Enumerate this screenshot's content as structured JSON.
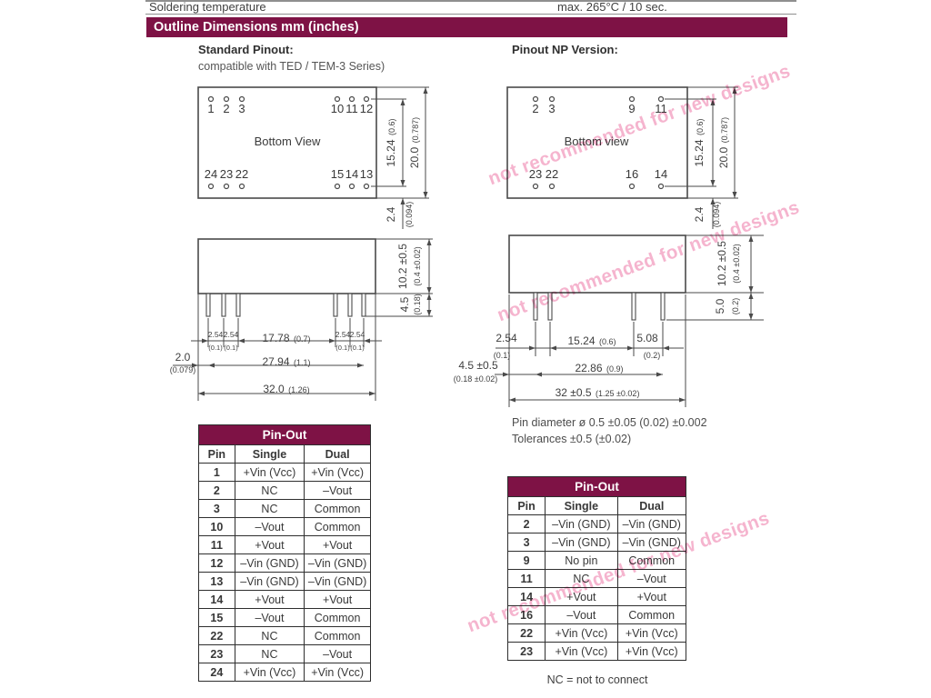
{
  "page": {
    "top_row": {
      "label": "Soldering temperature",
      "value": "max. 265°C / 10 sec."
    },
    "section_title": "Outline Dimensions mm (inches)",
    "watermark_text": "not recommended for new designs",
    "colors": {
      "accent_maroon": "#7E1245",
      "watermark_pink": "#F4A7C6",
      "line_gray": "#4A4A4A"
    }
  },
  "standard_top": {
    "title": "Standard Pinout:",
    "subtitle": "compatible with TED / TEM-3 Series)",
    "view_label": "Bottom View",
    "pins_top": [
      "1",
      "2",
      "3",
      "10",
      "11",
      "12"
    ],
    "pins_bottom": [
      "24",
      "23",
      "22",
      "15",
      "14",
      "13"
    ],
    "dim_pitch_mm": "15.24",
    "dim_pitch_in": "(0.6)",
    "dim_height_mm": "20.0",
    "dim_height_in": "(0.787)",
    "dim_offset_mm": "2.4",
    "dim_offset_in": "(0.094)"
  },
  "np_top": {
    "title": "Pinout NP Version:",
    "view_label": "Bottom view",
    "pins_top": [
      "2",
      "3",
      "9",
      "11"
    ],
    "pins_bottom": [
      "23",
      "22",
      "16",
      "14"
    ],
    "dim_pitch_mm": "15.24",
    "dim_pitch_in": "(0.6)",
    "dim_height_mm": "20.0",
    "dim_height_in": "(0.787)",
    "dim_offset_mm": "2.4",
    "dim_offset_in": "(0.094)"
  },
  "standard_side": {
    "body_h_mm": "10.2 ±0.5",
    "body_h_in": "(0.4 ±0.02)",
    "pin_len_mm": "4.5",
    "pin_len_in": "(0.18)",
    "seg1_mm": "2.54",
    "seg1_in": "(0.1)",
    "seg2_mm": "2.54",
    "seg2_in": "(0.1)",
    "mid_mm": "17.78",
    "mid_in": "(0.7)",
    "seg3_mm": "2.54",
    "seg3_in": "(0.1)",
    "seg4_mm": "2.54",
    "seg4_in": "(0.1)",
    "span_mm": "27.94",
    "span_in": "(1.1)",
    "total_mm": "32.0",
    "total_in": "(1.26)",
    "edge_mm": "2.0",
    "edge_in": "(0.079)"
  },
  "np_side": {
    "body_h_mm": "10.2 ±0.5",
    "body_h_in": "(0.4 ±0.02)",
    "pin_len_mm": "5.0",
    "pin_len_in": "(0.2)",
    "seg1_mm": "2.54",
    "seg1_in": "(0.1)",
    "mid_mm": "15.24",
    "mid_in": "(0.6)",
    "seg2_mm": "5.08",
    "seg2_in": "(0.2)",
    "span_mm": "22.86",
    "span_in": "(0.9)",
    "total_mm": "32 ±0.5",
    "total_in": "(1.25 ±0.02)",
    "edge_mm": "4.5 ±0.5",
    "edge_in": "(0.18 ±0.02)"
  },
  "notes": {
    "pin_diameter": "Pin diameter ø 0.5 ±0.05  (0.02) ±0.002",
    "tolerances": "Tolerances  ±0.5 (±0.02)"
  },
  "pinout_standard": {
    "title": "Pin-Out",
    "columns": [
      "Pin",
      "Single",
      "Dual"
    ],
    "rows": [
      [
        "1",
        "+Vin (Vcc)",
        "+Vin (Vcc)"
      ],
      [
        "2",
        "NC",
        "–Vout"
      ],
      [
        "3",
        "NC",
        "Common"
      ],
      [
        "10",
        "–Vout",
        "Common"
      ],
      [
        "11",
        "+Vout",
        "+Vout"
      ],
      [
        "12",
        "–Vin (GND)",
        "–Vin (GND)"
      ],
      [
        "13",
        "–Vin (GND)",
        "–Vin (GND)"
      ],
      [
        "14",
        "+Vout",
        "+Vout"
      ],
      [
        "15",
        "–Vout",
        "Common"
      ],
      [
        "22",
        "NC",
        "Common"
      ],
      [
        "23",
        "NC",
        "–Vout"
      ],
      [
        "24",
        "+Vin (Vcc)",
        "+Vin (Vcc)"
      ]
    ]
  },
  "pinout_np": {
    "title": "Pin-Out",
    "columns": [
      "Pin",
      "Single",
      "Dual"
    ],
    "rows": [
      [
        "2",
        "–Vin (GND)",
        "–Vin (GND)"
      ],
      [
        "3",
        "–Vin (GND)",
        "–Vin (GND)"
      ],
      [
        "9",
        "No pin",
        "Common"
      ],
      [
        "11",
        "NC",
        "–Vout"
      ],
      [
        "14",
        "+Vout",
        "+Vout"
      ],
      [
        "16",
        "–Vout",
        "Common"
      ],
      [
        "22",
        "+Vin (Vcc)",
        "+Vin (Vcc)"
      ],
      [
        "23",
        "+Vin (Vcc)",
        "+Vin (Vcc)"
      ]
    ],
    "footnote": "NC = not to connect"
  }
}
